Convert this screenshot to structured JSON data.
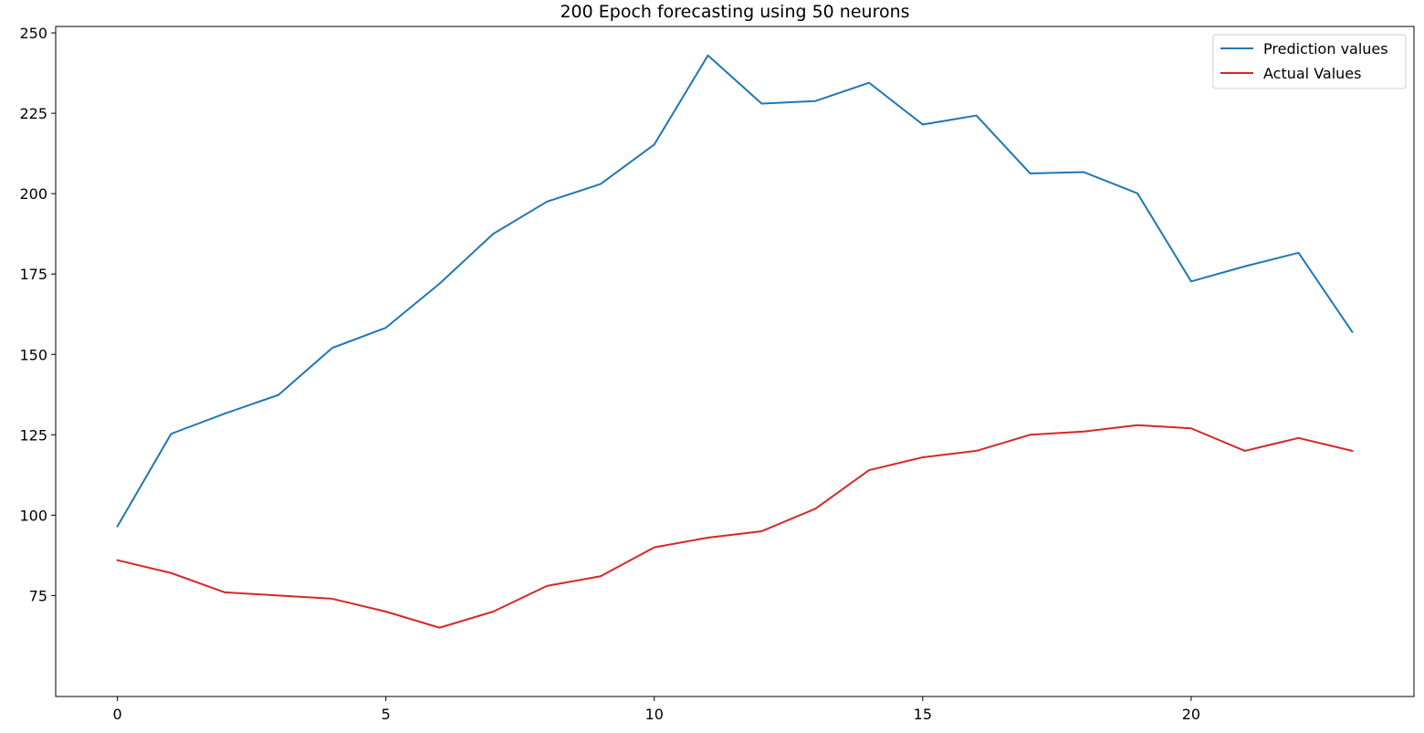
{
  "chart_data": {
    "type": "line",
    "title": "200 Epoch forecasting using 50 neurons",
    "xlabel": "",
    "ylabel": "",
    "xlim": [
      -1.15,
      24.15
    ],
    "ylim": [
      43.6,
      252
    ],
    "xticks": [
      0,
      5,
      10,
      15,
      20
    ],
    "yticks": [
      75,
      100,
      125,
      150,
      175,
      200,
      225,
      250
    ],
    "grid": false,
    "legend_position": "top-right",
    "x": [
      0,
      1,
      2,
      3,
      4,
      5,
      6,
      7,
      8,
      9,
      10,
      11,
      12,
      13,
      14,
      15,
      16,
      17,
      18,
      19,
      20,
      21,
      22,
      23
    ],
    "series": [
      {
        "name": "Prediction values",
        "color": "#1f77b4",
        "values": [
          96.5,
          125.3,
          131.6,
          137.4,
          152.0,
          158.3,
          172.0,
          187.5,
          197.5,
          203.0,
          215.3,
          243.0,
          228.0,
          228.8,
          234.5,
          221.5,
          224.3,
          206.3,
          206.7,
          200.1,
          172.7,
          177.4,
          181.6,
          157.0
        ]
      },
      {
        "name": "Actual Values",
        "color": "#d62728",
        "values": [
          86,
          82,
          76,
          75,
          74,
          70,
          65,
          70,
          78,
          81,
          90,
          93,
          95,
          102,
          114,
          118,
          120,
          125,
          126,
          128,
          127,
          120,
          124,
          120
        ]
      }
    ]
  }
}
